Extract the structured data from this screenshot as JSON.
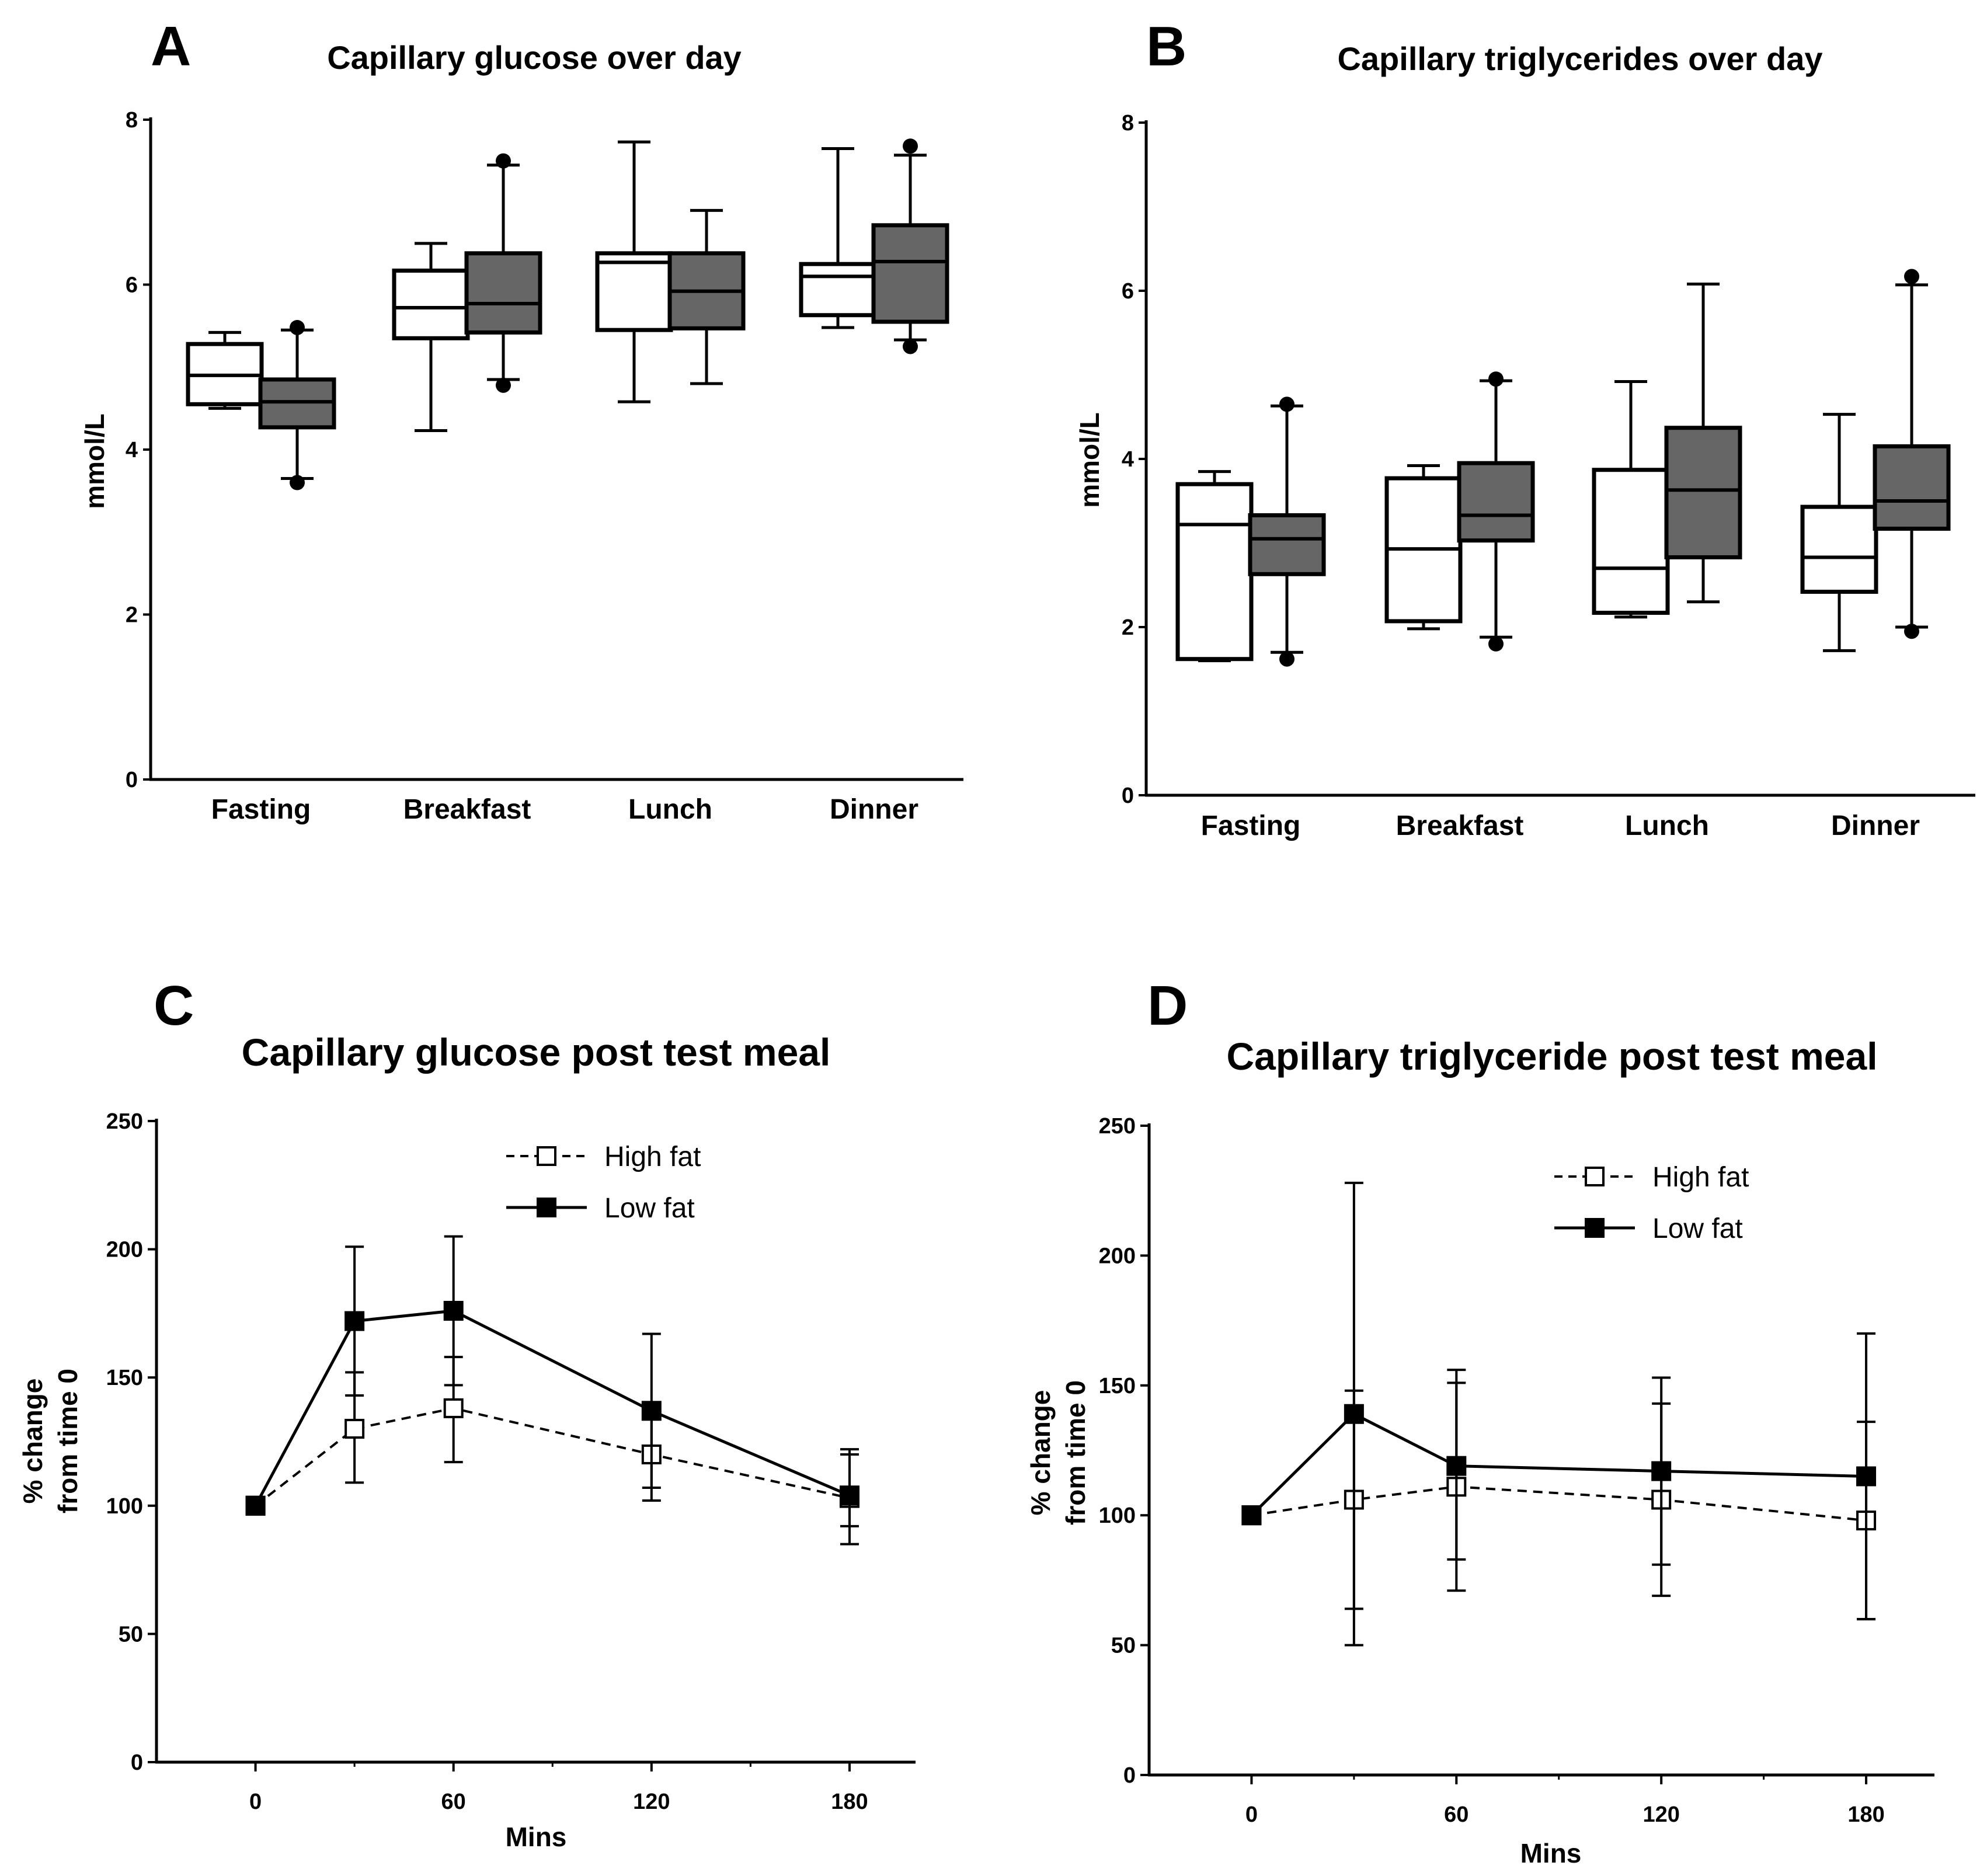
{
  "colors": {
    "light_box": "#ffffff",
    "dark_box": "#666666",
    "ink": "#000000"
  },
  "chart_data": [
    {
      "panel": "A",
      "type": "boxplot",
      "title": "Capillary glucose over day",
      "ylabel": "mmol/L",
      "xlabel": "",
      "ylim": [
        0,
        8
      ],
      "yticks": [
        0,
        2,
        4,
        6,
        8
      ],
      "categories": [
        "Fasting",
        "Breakfast",
        "Lunch",
        "Dinner"
      ],
      "series": [
        {
          "name": "light",
          "fill": "#ffffff",
          "boxes": [
            {
              "min": 4.5,
              "q1": 4.55,
              "median": 4.9,
              "q3": 5.28,
              "max": 5.42,
              "out_high": null,
              "out_low": null
            },
            {
              "min": 4.23,
              "q1": 5.35,
              "median": 5.72,
              "q3": 6.17,
              "max": 6.5,
              "out_high": null,
              "out_low": null
            },
            {
              "min": 4.58,
              "q1": 5.45,
              "median": 6.27,
              "q3": 6.38,
              "max": 7.73,
              "out_high": null,
              "out_low": null
            },
            {
              "min": 5.48,
              "q1": 5.63,
              "median": 6.1,
              "q3": 6.25,
              "max": 7.65,
              "out_high": null,
              "out_low": null
            }
          ]
        },
        {
          "name": "dark",
          "fill": "#666666",
          "boxes": [
            {
              "min": 3.65,
              "q1": 4.27,
              "median": 4.58,
              "q3": 4.85,
              "max": 5.45,
              "out_high": 5.48,
              "out_low": 3.6
            },
            {
              "min": 4.85,
              "q1": 5.42,
              "median": 5.77,
              "q3": 6.38,
              "max": 7.45,
              "out_high": 7.5,
              "out_low": 4.78
            },
            {
              "min": 4.8,
              "q1": 5.47,
              "median": 5.92,
              "q3": 6.38,
              "max": 6.9,
              "out_high": null,
              "out_low": null
            },
            {
              "min": 5.33,
              "q1": 5.55,
              "median": 6.28,
              "q3": 6.72,
              "max": 7.57,
              "out_high": 7.68,
              "out_low": 5.25
            }
          ]
        }
      ]
    },
    {
      "panel": "B",
      "type": "boxplot",
      "title": "Capillary triglycerides over day",
      "ylabel": "mmol/L",
      "xlabel": "",
      "ylim": [
        0,
        8
      ],
      "yticks": [
        0,
        2,
        4,
        6,
        8
      ],
      "categories": [
        "Fasting",
        "Breakfast",
        "Lunch",
        "Dinner"
      ],
      "series": [
        {
          "name": "light",
          "fill": "#ffffff",
          "boxes": [
            {
              "min": 1.6,
              "q1": 1.62,
              "median": 3.22,
              "q3": 3.7,
              "max": 3.85,
              "out_high": null,
              "out_low": null
            },
            {
              "min": 1.98,
              "q1": 2.07,
              "median": 2.93,
              "q3": 3.77,
              "max": 3.92,
              "out_high": null,
              "out_low": null
            },
            {
              "min": 2.12,
              "q1": 2.17,
              "median": 2.7,
              "q3": 3.87,
              "max": 4.92,
              "out_high": null,
              "out_low": null
            },
            {
              "min": 1.72,
              "q1": 2.42,
              "median": 2.83,
              "q3": 3.43,
              "max": 4.53,
              "out_high": null,
              "out_low": null
            }
          ]
        },
        {
          "name": "dark",
          "fill": "#666666",
          "boxes": [
            {
              "min": 1.7,
              "q1": 2.63,
              "median": 3.05,
              "q3": 3.33,
              "max": 4.63,
              "out_high": 4.65,
              "out_low": 1.62
            },
            {
              "min": 1.88,
              "q1": 3.03,
              "median": 3.33,
              "q3": 3.95,
              "max": 4.93,
              "out_high": 4.95,
              "out_low": 1.8
            },
            {
              "min": 2.3,
              "q1": 2.83,
              "median": 3.63,
              "q3": 4.37,
              "max": 6.08,
              "out_high": null,
              "out_low": null
            },
            {
              "min": 2.0,
              "q1": 3.17,
              "median": 3.5,
              "q3": 4.15,
              "max": 6.07,
              "out_high": 6.17,
              "out_low": 1.95
            }
          ]
        }
      ]
    },
    {
      "panel": "C",
      "type": "line",
      "title": "Capillary glucose post test meal",
      "xlabel": "Mins",
      "ylabel": [
        "% change",
        "from time 0"
      ],
      "xlim": [
        -30,
        200
      ],
      "xticks": [
        0,
        60,
        120,
        180
      ],
      "xminor": [
        30,
        90,
        150
      ],
      "ylim": [
        0,
        250
      ],
      "yticks": [
        0,
        50,
        100,
        150,
        200,
        250
      ],
      "series": [
        {
          "name": "High fat",
          "style": "dashed",
          "marker": "open-square",
          "x": [
            0,
            30,
            60,
            120,
            180
          ],
          "y": [
            100,
            130,
            138,
            120,
            103
          ],
          "err_high": [
            null,
            152,
            158,
            138,
            120
          ],
          "err_low": [
            null,
            109,
            117,
            102,
            85
          ]
        },
        {
          "name": "Low fat",
          "style": "solid",
          "marker": "filled-square",
          "x": [
            0,
            30,
            60,
            120,
            180
          ],
          "y": [
            100,
            172,
            176,
            137,
            104
          ],
          "err_high": [
            null,
            201,
            205,
            167,
            122
          ],
          "err_low": [
            null,
            143,
            147,
            107,
            92
          ]
        }
      ]
    },
    {
      "panel": "D",
      "type": "line",
      "title": "Capillary triglyceride post test meal",
      "xlabel": "Mins",
      "ylabel": [
        "% change",
        "from time 0"
      ],
      "xlim": [
        -30,
        200
      ],
      "xticks": [
        0,
        60,
        120,
        180
      ],
      "xminor": [
        30,
        90,
        150
      ],
      "ylim": [
        0,
        250
      ],
      "yticks": [
        0,
        50,
        100,
        150,
        200,
        250
      ],
      "series": [
        {
          "name": "High fat",
          "style": "dashed",
          "marker": "open-square",
          "x": [
            0,
            30,
            60,
            120,
            180
          ],
          "y": [
            100,
            106,
            111,
            106,
            98
          ],
          "err_high": [
            null,
            148,
            151,
            143,
            136
          ],
          "err_low": [
            null,
            64,
            71,
            69,
            60
          ]
        },
        {
          "name": "Low fat",
          "style": "solid",
          "marker": "filled-square",
          "x": [
            0,
            30,
            60,
            120,
            180
          ],
          "y": [
            100,
            139,
            119,
            117,
            115
          ],
          "err_high": [
            null,
            228,
            156,
            153,
            170
          ],
          "err_low": [
            null,
            50,
            83,
            81,
            60
          ]
        }
      ]
    }
  ]
}
